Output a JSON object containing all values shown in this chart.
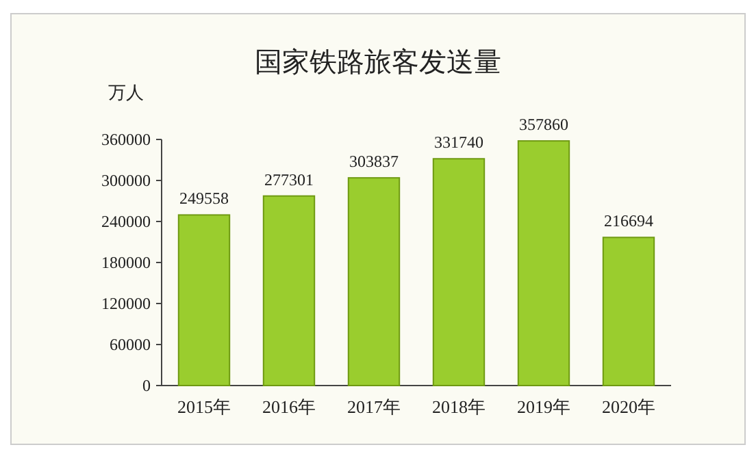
{
  "chart_data": {
    "type": "bar",
    "title": "国家铁路旅客发送量",
    "ylabel": "万人",
    "categories": [
      "2015年",
      "2016年",
      "2017年",
      "2018年",
      "2019年",
      "2020年"
    ],
    "values": [
      249558,
      277301,
      303837,
      331740,
      357860,
      216694
    ],
    "color": "#9acd2e",
    "ylim": [
      0,
      360000
    ],
    "yticks": [
      0,
      60000,
      120000,
      180000,
      240000,
      300000,
      360000
    ],
    "data_labels": true,
    "grid": false
  }
}
